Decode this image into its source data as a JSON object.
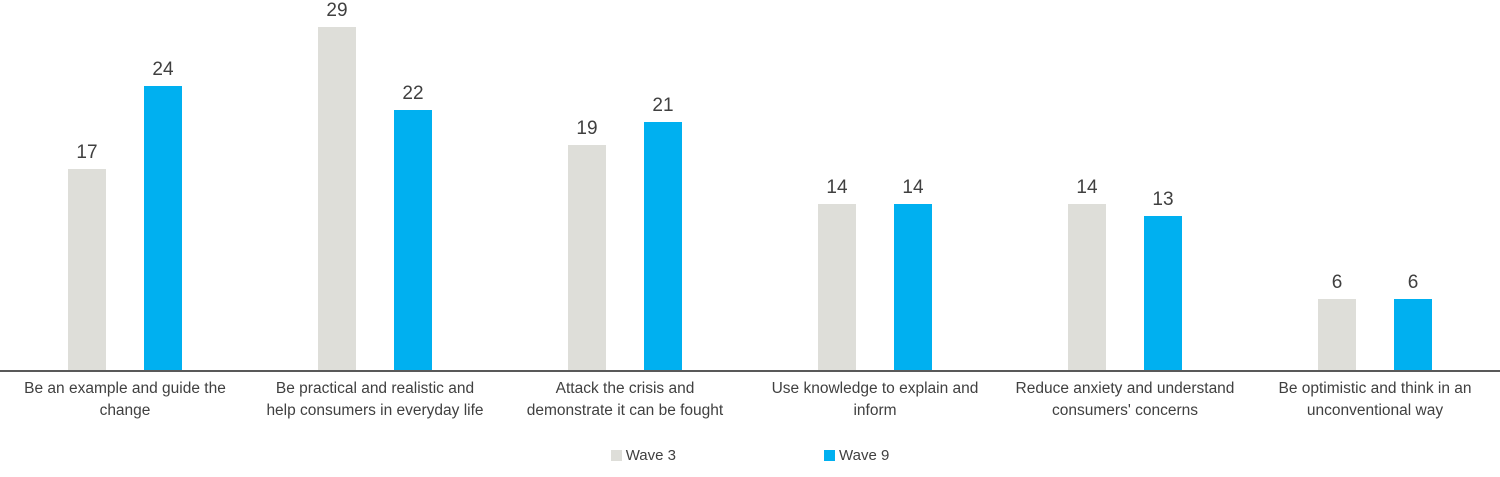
{
  "chart_data": {
    "type": "bar",
    "title": "",
    "xlabel": "",
    "ylabel": "",
    "ylim": [
      0,
      30
    ],
    "grid": false,
    "legend_position": "bottom",
    "value_labels_shown": true,
    "categories": [
      "Be an example and guide the\nchange",
      "Be practical and realistic and\nhelp consumers in everyday life",
      "Attack the crisis and\ndemonstrate it can be fought",
      "Use knowledge to explain and\ninform",
      "Reduce anxiety and understand\nconsumers' concerns",
      "Be optimistic and think in an\nunconventional way"
    ],
    "series": [
      {
        "name": "Wave 3",
        "color": "#DEDED9",
        "values": [
          17,
          29,
          19,
          14,
          14,
          6
        ]
      },
      {
        "name": "Wave 9",
        "color": "#00B0F0",
        "values": [
          24,
          22,
          21,
          14,
          13,
          6
        ]
      }
    ]
  },
  "colors": {
    "axis_line": "#595959",
    "label_text": "#404040",
    "background": "#FFFFFF"
  }
}
